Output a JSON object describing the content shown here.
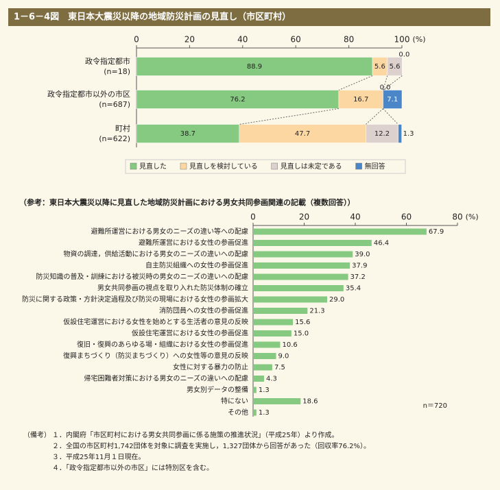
{
  "title": "1－6－4図　東日本大震災以降の地域防災計画の見直し（市区町村）",
  "chart_data": [
    {
      "type": "stacked_bar",
      "orientation": "horizontal",
      "categories": [
        "政令指定都市",
        "政令指定都市以外の市区",
        "町村"
      ],
      "category_counts": [
        "(n=18)",
        "(n=687)",
        "(n=622)"
      ],
      "series": [
        {
          "name": "見直した",
          "color": "#86c980",
          "values": [
            88.9,
            76.2,
            38.7
          ],
          "value_labels": [
            "88.9",
            "76.2",
            "38.7"
          ]
        },
        {
          "name": "見直しを検討している",
          "color": "#fcd7a2",
          "values": [
            5.6,
            16.7,
            47.7
          ],
          "value_labels": [
            "5.6",
            "16.7",
            "47.7"
          ]
        },
        {
          "name": "見直しは未定である",
          "color": "#ddd1cd",
          "values": [
            5.6,
            0.0,
            12.2
          ],
          "value_labels": [
            "5.6",
            "0.0",
            "12.2"
          ]
        },
        {
          "name": "無回答",
          "color": "#4a86c8",
          "values": [
            0.0,
            7.1,
            1.3
          ],
          "value_labels": [
            "0.0",
            "7.1",
            "1.3"
          ]
        }
      ],
      "xlim": [
        0,
        100
      ],
      "xticks": [
        0,
        20,
        40,
        60,
        80,
        100
      ],
      "xlabel": "(%)",
      "legend": "bottom"
    },
    {
      "type": "bar",
      "orientation": "horizontal",
      "title": "（参考：東日本大震災以降に見直した地域防災計画における男女共同参画関連の記載（複数回答））",
      "categories": [
        "避難所運営における男女のニーズの違い等への配慮",
        "避難所運営における女性の参画促進",
        "物資の調達，供給活動における男女のニーズの違いへの配慮",
        "自主防災組織への女性の参画促進",
        "防災知識の普及・訓練における被災時の男女のニーズの違いへの配慮",
        "男女共同参画の視点を取り入れた防災体制の確立",
        "防災に関する政策・方針決定過程及び防災の現場における女性の参画拡大",
        "消防団員への女性の参画促進",
        "仮設住宅運営における女性を始めとする生活者の意見の反映",
        "仮設住宅運営における女性の参画促進",
        "復旧・復興のあらゆる場・組織における女性の参画促進",
        "復興まちづくり（防災まちづくり）への女性等の意見の反映",
        "女性に対する暴力の防止",
        "帰宅困難者対策における男女のニーズの違いへの配慮",
        "男女別データの整備",
        "特にない",
        "その他"
      ],
      "values": [
        67.9,
        46.4,
        39.0,
        37.9,
        37.2,
        35.4,
        29.0,
        21.3,
        15.6,
        15.0,
        10.6,
        9.0,
        7.5,
        4.3,
        1.3,
        18.6,
        1.3
      ],
      "value_labels": [
        "67.9",
        "46.4",
        "39.0",
        "37.9",
        "37.2",
        "35.4",
        "29.0",
        "21.3",
        "15.6",
        "15.0",
        "10.6",
        "9.0",
        "7.5",
        "4.3",
        "1.3",
        "18.6",
        "1.3"
      ],
      "color": "#86c980",
      "xlim": [
        0,
        80
      ],
      "xticks": [
        0,
        20,
        40,
        60,
        80
      ],
      "xlabel": "(%)",
      "note": "n＝720"
    }
  ],
  "notes": {
    "label": "（備考）",
    "items": [
      "１．内閣府「市区町村における男女共同参画に係る施策の推進状況」（平成25年）より作成。",
      "２．全国の市区町村1,742団体を対象に調査を実施し，1,327団体から回答があった（回収率76.2%）。",
      "３．平成25年11月１日現在。",
      "４．「政令指定都市以外の市区」には特別区を含む。"
    ]
  }
}
